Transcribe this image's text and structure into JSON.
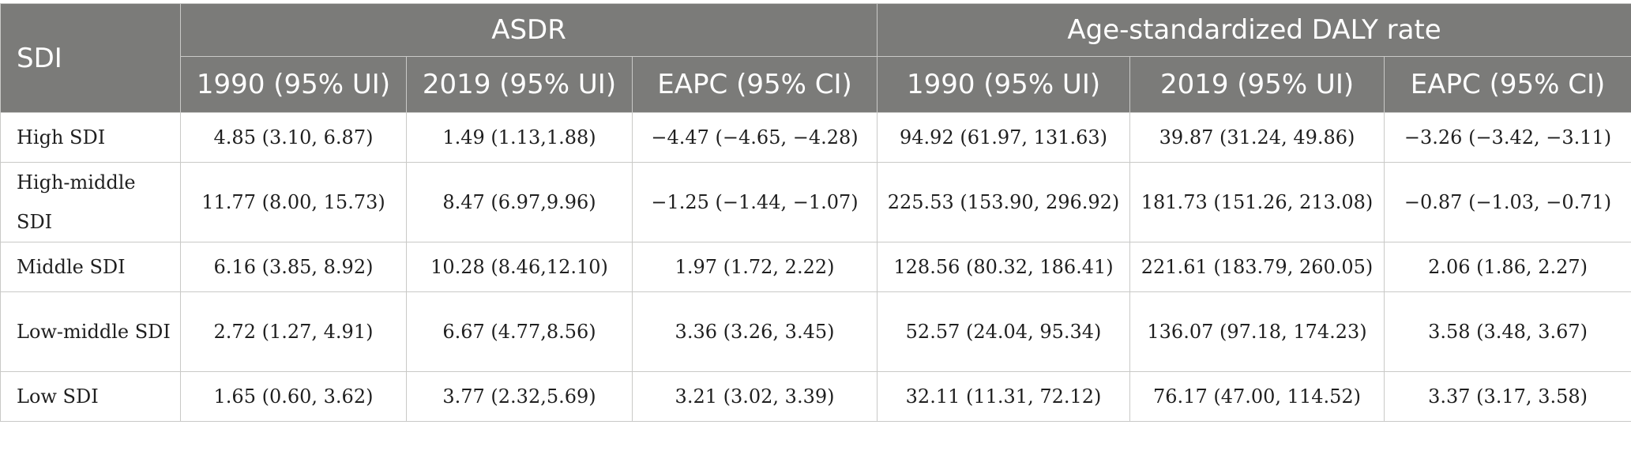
{
  "header": {
    "sdi": "SDI",
    "groups": [
      "ASDR",
      "Age-standardized DALY rate"
    ],
    "subcolumns": [
      "1990 (95% UI)",
      "2019 (95% UI)",
      "EAPC (95% CI)",
      "1990 (95% UI)",
      "2019 (95% UI)",
      "EAPC (95% CI)"
    ]
  },
  "rows": [
    {
      "label": "High SDI",
      "cells": [
        "4.85 (3.10, 6.87)",
        "1.49 (1.13,1.88)",
        "−4.47 (−4.65, −4.28)",
        "94.92 (61.97, 131.63)",
        "39.87 (31.24, 49.86)",
        "−3.26 (−3.42, −3.11)"
      ]
    },
    {
      "label": "High-middle SDI",
      "cells": [
        "11.77 (8.00, 15.73)",
        "8.47 (6.97,9.96)",
        "−1.25 (−1.44, −1.07)",
        "225.53 (153.90, 296.92)",
        "181.73 (151.26, 213.08)",
        "−0.87 (−1.03, −0.71)"
      ]
    },
    {
      "label": "Middle SDI",
      "cells": [
        "6.16 (3.85, 8.92)",
        "10.28 (8.46,12.10)",
        "1.97 (1.72, 2.22)",
        "128.56 (80.32, 186.41)",
        "221.61 (183.79, 260.05)",
        "2.06 (1.86, 2.27)"
      ]
    },
    {
      "label": "Low-middle SDI",
      "cells": [
        "2.72 (1.27, 4.91)",
        "6.67 (4.77,8.56)",
        "3.36 (3.26, 3.45)",
        "52.57 (24.04, 95.34)",
        "136.07 (97.18, 174.23)",
        "3.58 (3.48, 3.67)"
      ]
    },
    {
      "label": "Low SDI",
      "cells": [
        "1.65 (0.60, 3.62)",
        "3.77 (2.32,5.69)",
        "3.21 (3.02, 3.39)",
        "32.11 (11.31, 72.12)",
        "76.17 (47.00, 114.52)",
        "3.37 (3.17, 3.58)"
      ]
    }
  ]
}
